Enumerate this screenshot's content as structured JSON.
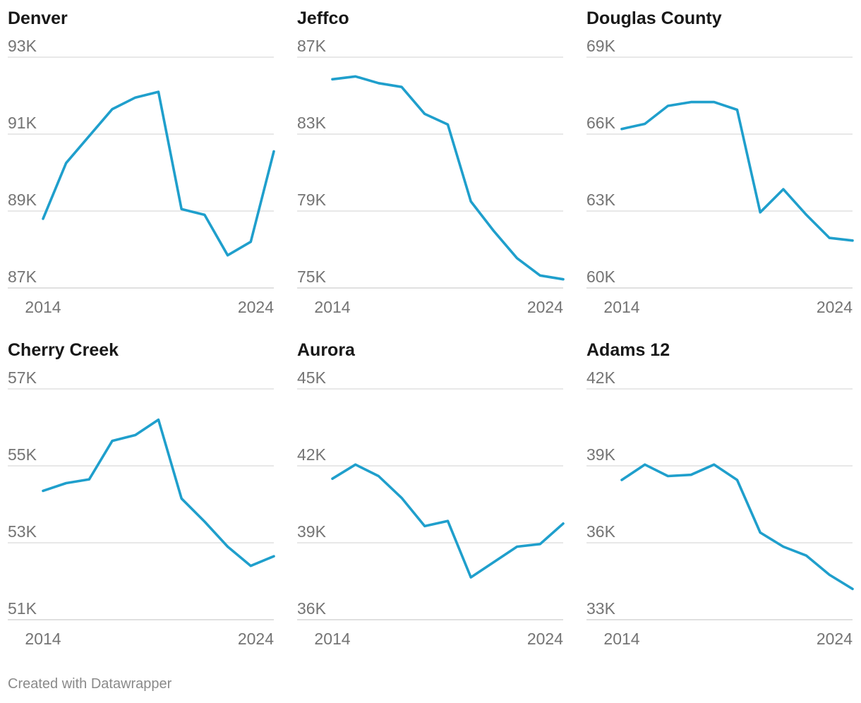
{
  "footer": {
    "credit": "Created with Datawrapper"
  },
  "style": {
    "line_color": "#1f9fcc",
    "grid_color": "#e1e1e1",
    "title_color": "#181818",
    "tick_color": "#747474"
  },
  "chart_data": [
    {
      "type": "line",
      "title": "Denver",
      "x": [
        2014,
        2015,
        2016,
        2017,
        2018,
        2019,
        2020,
        2021,
        2022,
        2023,
        2024
      ],
      "x_tick_labels": [
        "2014",
        "2024"
      ],
      "y_ticks": [
        87000,
        89000,
        91000,
        93000
      ],
      "y_tick_labels": [
        "87K",
        "89K",
        "91K",
        "93K"
      ],
      "ylim": [
        87000,
        93000
      ],
      "grid": true,
      "series": [
        {
          "name": "Denver",
          "values": [
            88800,
            90250,
            90950,
            91650,
            91950,
            92100,
            89050,
            88900,
            87850,
            88200,
            90550
          ]
        }
      ]
    },
    {
      "type": "line",
      "title": "Jeffco",
      "x": [
        2014,
        2015,
        2016,
        2017,
        2018,
        2019,
        2020,
        2021,
        2022,
        2023,
        2024
      ],
      "x_tick_labels": [
        "2014",
        "2024"
      ],
      "y_ticks": [
        75000,
        79000,
        83000,
        87000
      ],
      "y_tick_labels": [
        "75K",
        "79K",
        "83K",
        "87K"
      ],
      "ylim": [
        75000,
        87000
      ],
      "grid": true,
      "series": [
        {
          "name": "Jeffco",
          "values": [
            85850,
            86000,
            85650,
            85450,
            84050,
            83500,
            79500,
            77950,
            76550,
            75650,
            75450
          ]
        }
      ]
    },
    {
      "type": "line",
      "title": "Douglas County",
      "x": [
        2014,
        2015,
        2016,
        2017,
        2018,
        2019,
        2020,
        2021,
        2022,
        2023,
        2024
      ],
      "x_tick_labels": [
        "2014",
        "2024"
      ],
      "y_ticks": [
        60000,
        63000,
        66000,
        69000
      ],
      "y_tick_labels": [
        "60K",
        "63K",
        "66K",
        "69K"
      ],
      "ylim": [
        60000,
        69000
      ],
      "grid": true,
      "series": [
        {
          "name": "Douglas County",
          "values": [
            66200,
            66400,
            67100,
            67250,
            67250,
            66950,
            62950,
            63850,
            62850,
            61950,
            61850
          ]
        }
      ]
    },
    {
      "type": "line",
      "title": "Cherry Creek",
      "x": [
        2014,
        2015,
        2016,
        2017,
        2018,
        2019,
        2020,
        2021,
        2022,
        2023,
        2024
      ],
      "x_tick_labels": [
        "2014",
        "2024"
      ],
      "y_ticks": [
        51000,
        53000,
        55000,
        57000
      ],
      "y_tick_labels": [
        "51K",
        "53K",
        "55K",
        "57K"
      ],
      "ylim": [
        51000,
        57000
      ],
      "grid": true,
      "series": [
        {
          "name": "Cherry Creek",
          "values": [
            54350,
            54550,
            54650,
            55650,
            55800,
            56200,
            54150,
            53550,
            52900,
            52400,
            52650
          ]
        }
      ]
    },
    {
      "type": "line",
      "title": "Aurora",
      "x": [
        2014,
        2015,
        2016,
        2017,
        2018,
        2019,
        2020,
        2021,
        2022,
        2023,
        2024
      ],
      "x_tick_labels": [
        "2014",
        "2024"
      ],
      "y_ticks": [
        36000,
        39000,
        42000,
        45000
      ],
      "y_tick_labels": [
        "36K",
        "39K",
        "42K",
        "45K"
      ],
      "ylim": [
        36000,
        45000
      ],
      "grid": true,
      "series": [
        {
          "name": "Aurora",
          "values": [
            41500,
            42050,
            41600,
            40750,
            39650,
            39850,
            37650,
            38250,
            38850,
            38950,
            39750
          ]
        }
      ]
    },
    {
      "type": "line",
      "title": "Adams 12",
      "x": [
        2014,
        2015,
        2016,
        2017,
        2018,
        2019,
        2020,
        2021,
        2022,
        2023,
        2024
      ],
      "x_tick_labels": [
        "2014",
        "2024"
      ],
      "y_ticks": [
        33000,
        36000,
        39000,
        42000
      ],
      "y_tick_labels": [
        "33K",
        "36K",
        "39K",
        "42K"
      ],
      "ylim": [
        33000,
        42000
      ],
      "grid": true,
      "series": [
        {
          "name": "Adams 12",
          "values": [
            38450,
            39050,
            38600,
            38650,
            39050,
            38450,
            36400,
            35850,
            35500,
            34750,
            34200
          ]
        }
      ]
    }
  ]
}
